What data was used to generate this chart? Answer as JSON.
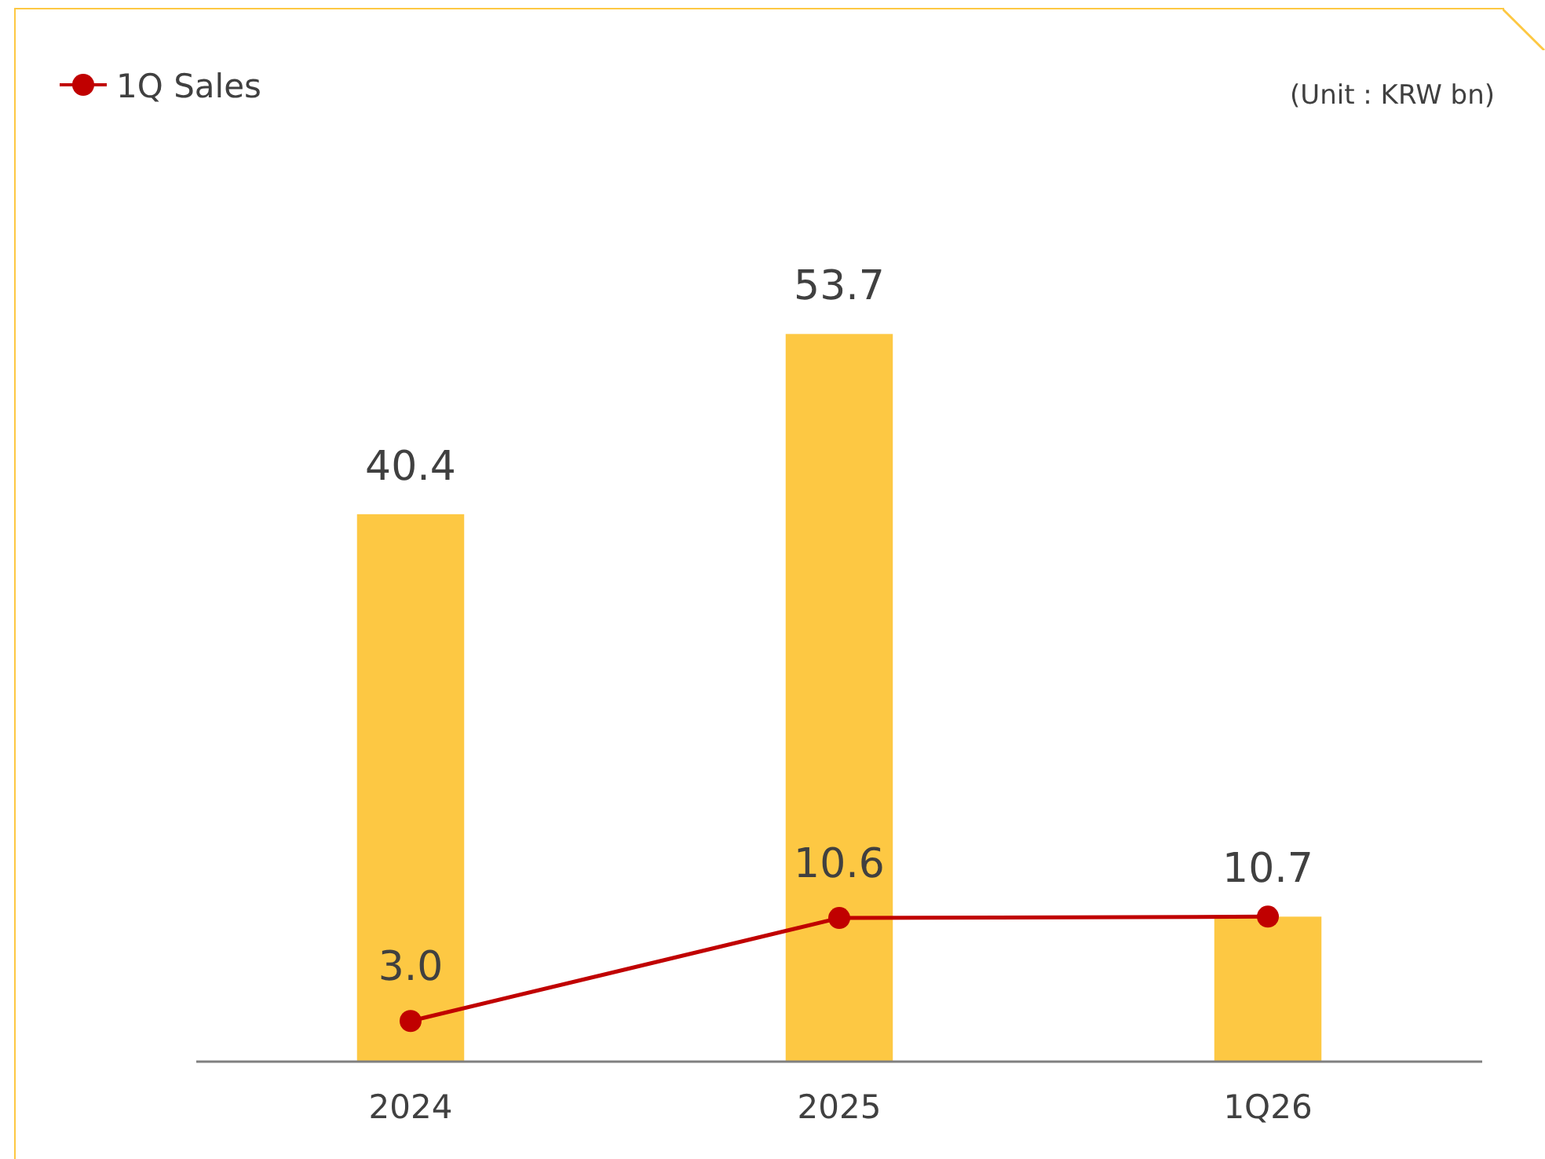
{
  "chart_data": {
    "type": "bar",
    "categories": [
      "2024",
      "2025",
      "1Q26"
    ],
    "annotations": [
      "(Unit : KRW bn)"
    ],
    "legend": "top left",
    "marker": "circle",
    "line_style": "solid",
    "series": [
      {
        "color": "#fdc843",
        "values": [
          40.4,
          53.7,
          10.7
        ],
        "value_labels": [
          "40.4",
          "53.7",
          "10.7"
        ]
      },
      {
        "type": "line",
        "name": "1Q Sales",
        "color": "#c00000",
        "values": [
          3.0,
          10.6,
          10.7
        ],
        "value_labels": [
          "3.0",
          "10.6",
          null
        ]
      }
    ]
  }
}
